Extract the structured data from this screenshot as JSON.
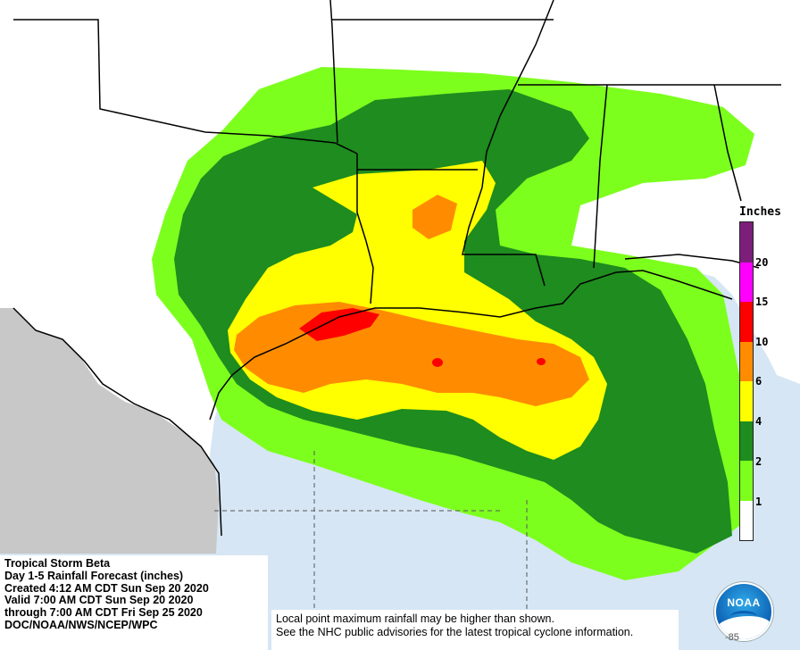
{
  "title_block": {
    "lines": [
      "Tropical Storm Beta",
      "Day 1-5 Rainfall Forecast (inches)",
      "Created 4:12 AM CDT Sun Sep 20 2020",
      "Valid 7:00 AM CDT Sun Sep 20 2020",
      "through 7:00 AM CDT Fri Sep 25 2020",
      "DOC/NOAA/NWS/NCEP/WPC"
    ]
  },
  "disclaimer": {
    "lines": [
      "Local point maximum rainfall may be higher than shown.",
      "See the NHC public advisories for the latest tropical cyclone information."
    ]
  },
  "legend": {
    "title": "Inches",
    "ticks": [
      "20",
      "15",
      "10",
      "6",
      "4",
      "2",
      "1"
    ],
    "colors_top_to_bottom": [
      "#7b1f7a",
      "#ff00ff",
      "#ff0000",
      "#ff8c00",
      "#ffff00",
      "#1e8c1e",
      "#7dff1e",
      "#ffffff"
    ]
  },
  "logo": {
    "text": "NOAA"
  },
  "corner_label": "-85",
  "map_colors": {
    "ocean": "#d6e6f4",
    "land": "#ffffff",
    "mexico": "#c8c8c8",
    "rain_1": "#7dff1e",
    "rain_2": "#1e8c1e",
    "rain_4": "#ffff00",
    "rain_6": "#ff8c00",
    "rain_10": "#ff0000"
  }
}
